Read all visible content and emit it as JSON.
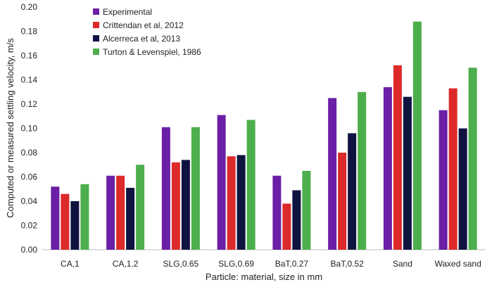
{
  "chart_data": {
    "type": "bar",
    "xlabel": "Particle: material, size in mm",
    "ylabel": "Computed or measured settling velocity, m/s",
    "ylim": [
      0,
      0.2
    ],
    "yticks": [
      "0.00",
      "0.02",
      "0.04",
      "0.06",
      "0.08",
      "0.10",
      "0.12",
      "0.14",
      "0.16",
      "0.18",
      "0.20"
    ],
    "grid": false,
    "legend_position": "top-left",
    "categories": [
      "CA,1",
      "CA,1.2",
      "SLG,0.65",
      "SLG,0.69",
      "BaT,0.27",
      "BaT,0.52",
      "Sand",
      "Waxed sand"
    ],
    "series": [
      {
        "name": "Experimental",
        "color": "#6a1fa6",
        "values": [
          0.052,
          0.061,
          0.101,
          0.111,
          0.061,
          0.125,
          0.134,
          0.115
        ]
      },
      {
        "name": "Crittendan et al, 2012",
        "color": "#dc2a2a",
        "values": [
          0.046,
          0.061,
          0.072,
          0.077,
          0.038,
          0.08,
          0.152,
          0.133
        ]
      },
      {
        "name": "Alcerreca et al, 2013",
        "color": "#0f1340",
        "values": [
          0.04,
          0.051,
          0.074,
          0.078,
          0.049,
          0.096,
          0.126,
          0.1
        ]
      },
      {
        "name": "Turton & Levenspiel, 1986",
        "color": "#4cae4c",
        "values": [
          0.054,
          0.07,
          0.101,
          0.107,
          0.065,
          0.13,
          0.188,
          0.15
        ]
      }
    ]
  }
}
